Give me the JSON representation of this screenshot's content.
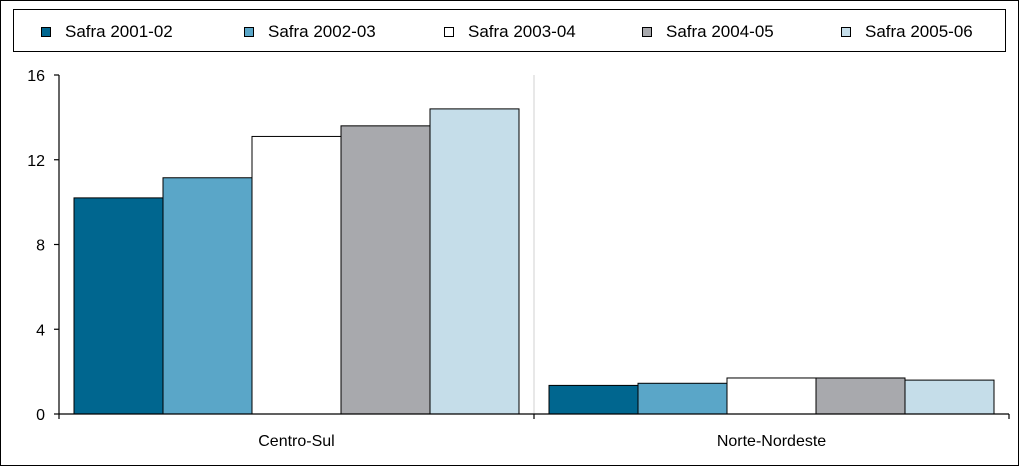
{
  "chart_data": {
    "type": "bar",
    "categories": [
      "Centro-Sul",
      "Norte-Nordeste"
    ],
    "series": [
      {
        "name": "Safra 2001-02",
        "color": "#00668f",
        "values": [
          10.2,
          1.35
        ]
      },
      {
        "name": "Safra 2002-03",
        "color": "#5aa6c8",
        "values": [
          11.15,
          1.45
        ]
      },
      {
        "name": "Safra 2003-04",
        "color": "#ffffff",
        "values": [
          13.1,
          1.7
        ]
      },
      {
        "name": "Safra 2004-05",
        "color": "#a8a9ad",
        "values": [
          13.6,
          1.7
        ]
      },
      {
        "name": "Safra 2005-06",
        "color": "#c5dde9",
        "values": [
          14.4,
          1.6
        ]
      }
    ],
    "yticks": [
      "0",
      "4",
      "8",
      "12",
      "16"
    ],
    "ylim": [
      0,
      16
    ],
    "legend_position": "top",
    "grid": "vertical category separators"
  }
}
